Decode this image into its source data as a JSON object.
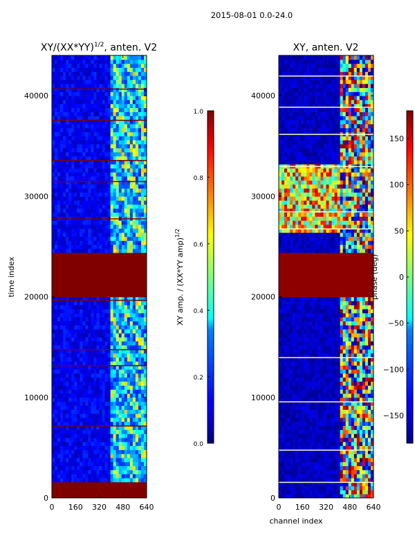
{
  "figure": {
    "suptitle": "2015-08-01 0.0-24.0"
  },
  "chart_data": [
    {
      "type": "heatmap",
      "title_main": "XY/(XX*YY)",
      "title_sup": "1/2",
      "title_tail": ", anten. V2",
      "xlabel": "",
      "ylabel": "time index",
      "xlim": [
        0,
        640
      ],
      "ylim": [
        0,
        44000
      ],
      "x_ticks": [
        0,
        160,
        320,
        480,
        640
      ],
      "y_ticks": [
        0,
        10000,
        20000,
        30000,
        40000
      ],
      "x_tick_labels": [
        "0",
        "160",
        "320",
        "480",
        "640"
      ],
      "y_tick_labels": [
        "0",
        "10000",
        "20000",
        "30000",
        "40000"
      ],
      "colormap": "jet",
      "colorbar": {
        "label_main": "XY amp. / (XX*YY amp)",
        "label_sup": "1/2",
        "range": [
          0.0,
          1.0
        ],
        "ticks": [
          0.0,
          0.2,
          0.4,
          0.6,
          0.8,
          1.0
        ],
        "tick_labels": [
          "0.0",
          "0.2",
          "0.4",
          "0.6",
          "0.8",
          "1.0"
        ]
      },
      "background_value": 0.08,
      "saturated_time_bands": [
        [
          0,
          1400
        ],
        [
          20000,
          24200
        ]
      ],
      "bright_channel_range": [
        380,
        640
      ],
      "flagged_time_rows": [
        7200,
        13200,
        14800,
        19700,
        27800,
        31500,
        33600,
        37600,
        40700
      ]
    },
    {
      "type": "heatmap",
      "title": "XY, anten. V2",
      "xlabel": "channel index",
      "ylabel": "",
      "xlim": [
        0,
        640
      ],
      "ylim": [
        0,
        44000
      ],
      "x_ticks": [
        0,
        160,
        320,
        480,
        640
      ],
      "y_ticks": [
        0,
        10000,
        20000,
        30000,
        40000
      ],
      "x_tick_labels": [
        "0",
        "160",
        "320",
        "480",
        "640"
      ],
      "y_tick_labels": [
        "0",
        "10000",
        "20000",
        "30000",
        "40000"
      ],
      "colormap": "jet",
      "colorbar": {
        "label": "phase (deg)",
        "range": [
          -180,
          180
        ],
        "ticks": [
          -150,
          -100,
          -50,
          0,
          50,
          100,
          150
        ],
        "tick_labels": [
          "−150",
          "−100",
          "−50",
          "0",
          "50",
          "100",
          "150"
        ]
      },
      "background_value": -170,
      "saturated_time_bands": [
        [
          20000,
          24200
        ]
      ],
      "varying_channel_range": [
        400,
        640
      ],
      "flagged_time_rows": [
        1600,
        4800,
        9600,
        14000,
        26800,
        28500,
        33000,
        36200,
        38900,
        42000
      ]
    }
  ],
  "colors": {
    "jet_low": "#00007f",
    "jet_high": "#7f0000"
  }
}
